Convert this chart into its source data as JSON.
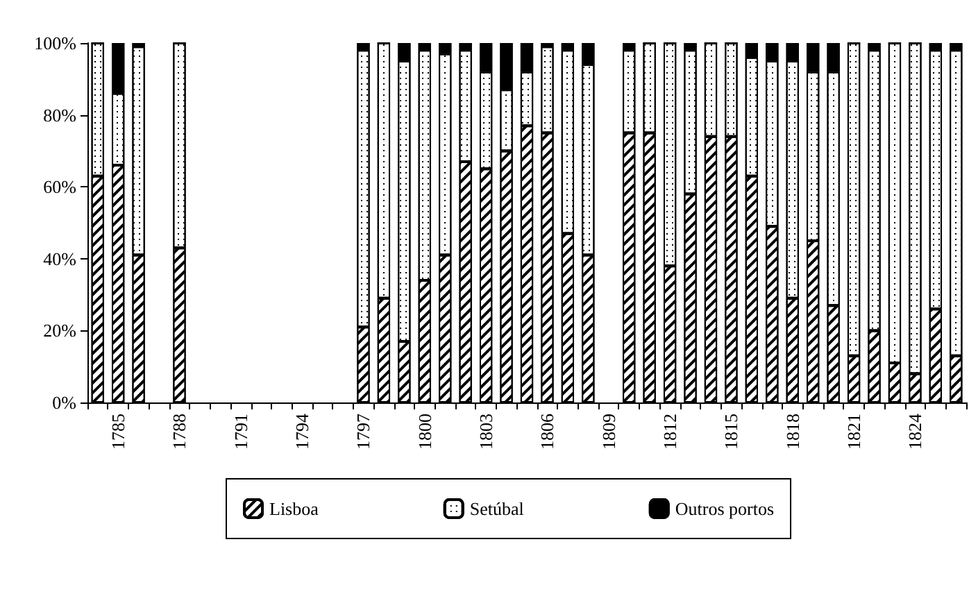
{
  "chart_data": {
    "type": "bar",
    "stacked": true,
    "categories": [
      null,
      "1785",
      null,
      null,
      "1788",
      null,
      null,
      "1791",
      null,
      null,
      "1794",
      null,
      null,
      "1797",
      null,
      null,
      "1800",
      null,
      null,
      "1803",
      null,
      null,
      "1806",
      null,
      null,
      "1809",
      null,
      null,
      "1812",
      null,
      null,
      "1815",
      null,
      null,
      "1818",
      null,
      null,
      "1821",
      null,
      null,
      "1824",
      null,
      null
    ],
    "series": [
      {
        "name": "Lisboa",
        "color": "#ffffff",
        "values": [
          63,
          66,
          41,
          null,
          43,
          null,
          null,
          null,
          null,
          null,
          null,
          null,
          null,
          21,
          29,
          17,
          34,
          41,
          67,
          65,
          70,
          77,
          75,
          47,
          41,
          null,
          75,
          75,
          38,
          58,
          74,
          74,
          63,
          49,
          29,
          45,
          27,
          13,
          20,
          11,
          8,
          26,
          13
        ]
      },
      {
        "name": "Setúbal",
        "color": "#ffffff",
        "values": [
          37,
          20,
          58,
          null,
          57,
          null,
          null,
          null,
          null,
          null,
          null,
          null,
          null,
          77,
          71,
          78,
          64,
          56,
          31,
          27,
          17,
          15,
          24,
          51,
          53,
          null,
          23,
          25,
          62,
          40,
          26,
          26,
          33,
          46,
          66,
          47,
          65,
          87,
          78,
          89,
          92,
          72,
          85
        ]
      },
      {
        "name": "Outros portos",
        "color": "#000000",
        "values": [
          0,
          14,
          1,
          null,
          0,
          null,
          null,
          null,
          null,
          null,
          null,
          null,
          null,
          2,
          0,
          5,
          2,
          3,
          2,
          8,
          13,
          8,
          1,
          2,
          6,
          null,
          2,
          0,
          0,
          2,
          0,
          0,
          4,
          5,
          5,
          8,
          8,
          0,
          2,
          0,
          0,
          2,
          2
        ]
      }
    ],
    "ylim": [
      0,
      100
    ],
    "yticks": [
      {
        "value": 0,
        "label": "0%"
      },
      {
        "value": 20,
        "label": "20%"
      },
      {
        "value": 40,
        "label": "40%"
      },
      {
        "value": 60,
        "label": "60%"
      },
      {
        "value": 80,
        "label": "80%"
      },
      {
        "value": 100,
        "label": "100%"
      }
    ],
    "grid": false,
    "legend": "bottom"
  }
}
